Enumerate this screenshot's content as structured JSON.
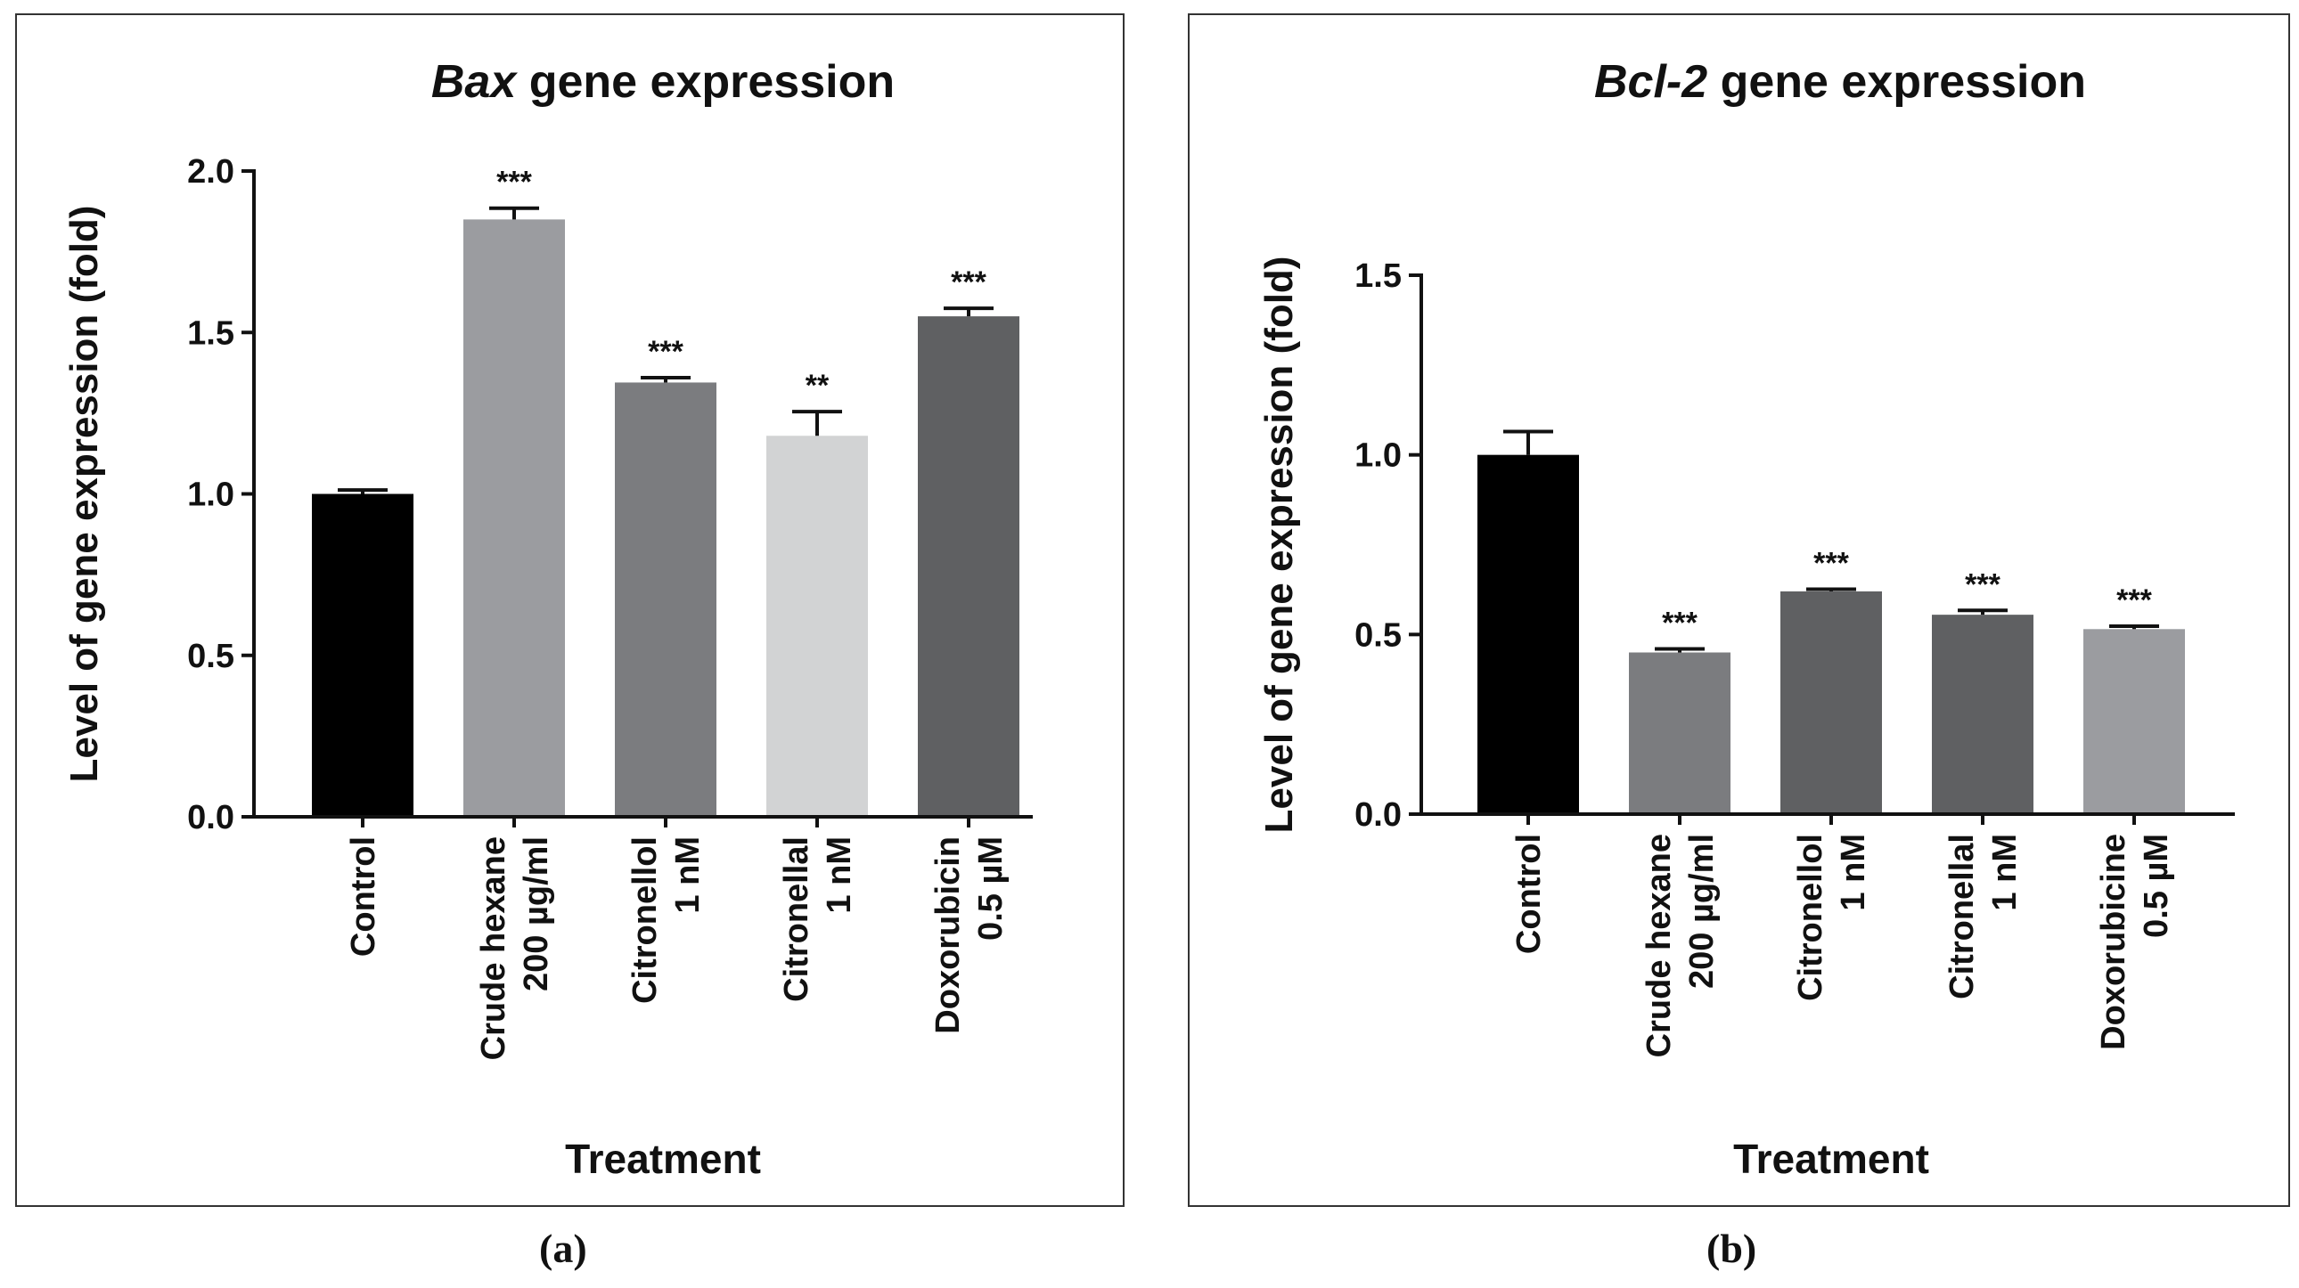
{
  "chart_data": [
    {
      "type": "bar",
      "panel": "(a)",
      "title_gene": "Bax",
      "title_rest": " gene expression",
      "xlabel": "Treatment",
      "ylabel": "Level of gene expression (fold)",
      "ylim": [
        0,
        2.0
      ],
      "yticks": [
        0.0,
        0.5,
        1.0,
        1.5,
        2.0
      ],
      "ytick_labels": [
        "0.0",
        "0.5",
        "1.0",
        "1.5",
        "2.0"
      ],
      "categories": [
        [
          "Control"
        ],
        [
          "Crude hexane",
          "200 µg/ml"
        ],
        [
          "Citronellol",
          "1 nM"
        ],
        [
          "Citronellal",
          "1 nM"
        ],
        [
          "Doxorubicin",
          "0.5 µM"
        ]
      ],
      "values": [
        1.0,
        1.85,
        1.345,
        1.18,
        1.55
      ],
      "errors": [
        0.012,
        0.035,
        0.015,
        0.075,
        0.025
      ],
      "significance": [
        "",
        "***",
        "***",
        "**",
        "***"
      ],
      "colors": [
        "#000000",
        "#9b9ca0",
        "#7b7c7f",
        "#d2d3d4",
        "#5f6062"
      ]
    },
    {
      "type": "bar",
      "panel": "(b)",
      "title_gene": "Bcl-2",
      "title_rest": " gene expression",
      "xlabel": "Treatment",
      "ylabel": "Level of gene expression (fold)",
      "ylim": [
        0,
        1.5
      ],
      "yticks": [
        0.0,
        0.5,
        1.0,
        1.5
      ],
      "ytick_labels": [
        "0.0",
        "0.5",
        "1.0",
        "1.5"
      ],
      "categories": [
        [
          "Control"
        ],
        [
          "Crude hexane",
          "200 µg/ml"
        ],
        [
          "Citronellol",
          "1 nM"
        ],
        [
          "Citronellal",
          "1 nM"
        ],
        [
          "Doxorubicine",
          "0.5 µM"
        ]
      ],
      "values": [
        1.0,
        0.45,
        0.62,
        0.555,
        0.515
      ],
      "errors": [
        0.065,
        0.01,
        0.006,
        0.012,
        0.008
      ],
      "significance": [
        "",
        "***",
        "***",
        "***",
        "***"
      ],
      "colors": [
        "#000000",
        "#7b7c7f",
        "#5f6062",
        "#5f6062",
        "#9b9ca0"
      ]
    }
  ],
  "panel_labels": [
    "(a)",
    "(b)"
  ]
}
